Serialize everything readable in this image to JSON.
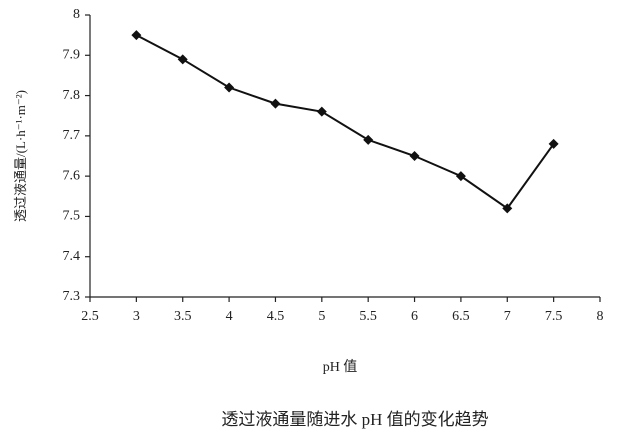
{
  "chart_data": {
    "type": "line",
    "caption": "透过液通量随进水 pH 值的变化趋势",
    "x_label": "pH 值",
    "y_label": "透过液通量/(L·h⁻¹·m⁻²)",
    "x": [
      3,
      3.5,
      4,
      4.5,
      5,
      5.5,
      6,
      6.5,
      7,
      7.5
    ],
    "values": [
      7.95,
      7.89,
      7.82,
      7.78,
      7.76,
      7.69,
      7.65,
      7.6,
      7.52,
      7.68
    ],
    "color": "#111111",
    "xlim": [
      2.5,
      8
    ],
    "xticks": [
      2.5,
      3,
      3.5,
      4,
      4.5,
      5,
      5.5,
      6,
      6.5,
      7,
      7.5,
      8
    ],
    "ylim": [
      7.3,
      8
    ],
    "yticks": [
      7.3,
      7.4,
      7.5,
      7.6,
      7.7,
      7.8,
      7.9,
      8
    ],
    "grid": false
  }
}
